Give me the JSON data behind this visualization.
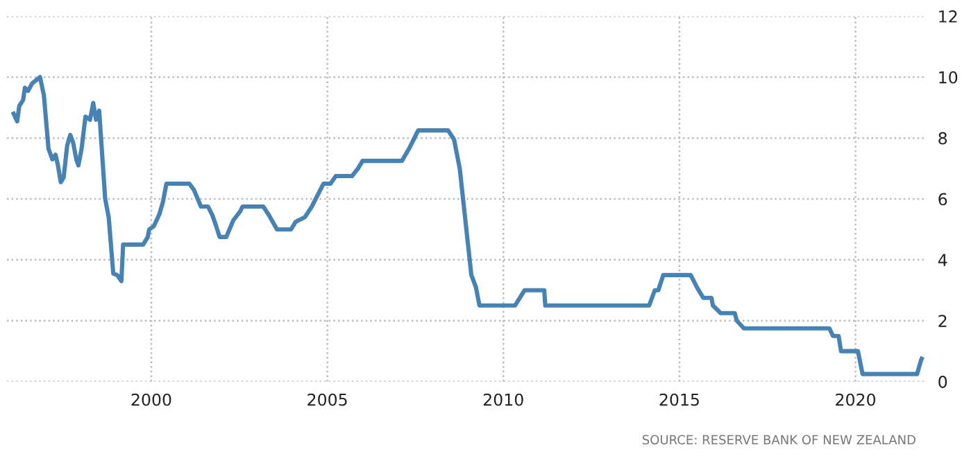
{
  "chart_data": {
    "type": "line",
    "x": [
      1996.09,
      1996.19,
      1996.25,
      1996.36,
      1996.41,
      1996.5,
      1996.62,
      1996.84,
      1996.95,
      1997.08,
      1997.19,
      1997.28,
      1997.34,
      1997.43,
      1997.51,
      1997.61,
      1997.7,
      1997.78,
      1997.87,
      1997.93,
      1998.02,
      1998.13,
      1998.26,
      1998.35,
      1998.43,
      1998.52,
      1998.69,
      1998.79,
      1998.92,
      1999.03,
      1999.15,
      1999.2,
      1999.77,
      1999.9,
      1999.94,
      2000.07,
      2000.23,
      2000.33,
      2000.43,
      2001.08,
      2001.21,
      2001.41,
      2001.61,
      2001.74,
      2001.83,
      2001.94,
      2002.13,
      2002.33,
      2002.53,
      2002.59,
      2003.18,
      2003.35,
      2003.57,
      2003.97,
      2004.1,
      2004.36,
      2004.56,
      2004.69,
      2004.89,
      2005.09,
      2005.24,
      2005.7,
      2005.87,
      2006.0,
      2007.12,
      2007.32,
      2007.58,
      2008.43,
      2008.6,
      2008.76,
      2009.09,
      2009.22,
      2009.32,
      2010.33,
      2010.6,
      2011.16,
      2011.19,
      2014.14,
      2014.3,
      2014.4,
      2014.54,
      2015.32,
      2015.52,
      2015.68,
      2015.91,
      2015.95,
      2016.17,
      2016.57,
      2016.63,
      2016.83,
      2019.26,
      2019.36,
      2019.52,
      2019.59,
      2020.07,
      2020.2,
      2021.75,
      2021.86,
      2021.88
    ],
    "series": [
      {
        "color": "#4682b4",
        "values": [
          8.8,
          8.55,
          9.05,
          9.25,
          9.65,
          9.55,
          9.8,
          10.0,
          9.4,
          7.65,
          7.3,
          7.45,
          7.15,
          6.55,
          6.7,
          7.75,
          8.1,
          7.85,
          7.3,
          7.1,
          7.65,
          8.7,
          8.6,
          9.15,
          8.6,
          8.9,
          6.0,
          5.4,
          3.55,
          3.5,
          3.3,
          4.5,
          4.5,
          4.75,
          5.0,
          5.1,
          5.5,
          5.9,
          6.5,
          6.5,
          6.3,
          5.75,
          5.75,
          5.45,
          5.15,
          4.75,
          4.75,
          5.3,
          5.6,
          5.75,
          5.75,
          5.45,
          5.0,
          5.0,
          5.25,
          5.4,
          5.75,
          6.05,
          6.5,
          6.5,
          6.75,
          6.75,
          7.0,
          7.25,
          7.25,
          7.65,
          8.25,
          8.25,
          7.95,
          7.0,
          3.5,
          3.1,
          2.5,
          2.5,
          3.0,
          3.0,
          2.5,
          2.5,
          3.0,
          3.0,
          3.5,
          3.5,
          3.05,
          2.75,
          2.75,
          2.5,
          2.25,
          2.25,
          2.0,
          1.75,
          1.75,
          1.5,
          1.5,
          1.0,
          1.0,
          0.25,
          0.25,
          0.7,
          0.75
        ]
      }
    ],
    "xlim": [
      1995.9,
      2022.0
    ],
    "ylim": [
      0,
      12
    ],
    "xticks": [
      2000,
      2005,
      2010,
      2015,
      2020
    ],
    "yticks": [
      0,
      2,
      4,
      6,
      8,
      10,
      12
    ],
    "grid": true,
    "legend": false,
    "marker": "none",
    "line_style": "solid",
    "annotations": [
      "SOURCE: RESERVE BANK OF NEW ZEALAND"
    ]
  }
}
